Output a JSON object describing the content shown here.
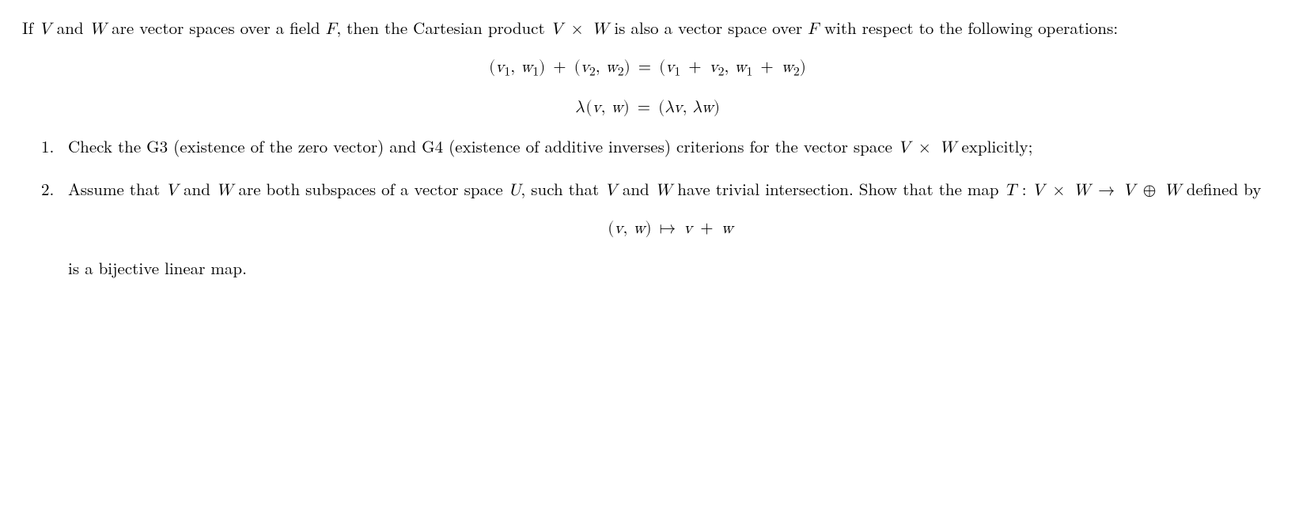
{
  "intro": {
    "part1": "If ",
    "V": "V",
    "and1": " and ",
    "W": "W",
    "part2": " are vector spaces over a field ",
    "F": "F",
    "part3": ", then the Cartesian product ",
    "VxW": "V × W",
    "part4": " is also a vector space over ",
    "F2": "F",
    "part5": " with respect to the following operations:"
  },
  "eq1": "(v₁, w₁) + (v₂, w₂) = (v₁ + v₂, w₁ + w₂)",
  "eq2": "λ (v, w) = (λv, λw)",
  "item1": {
    "part1": "Check the G3 (existence of the zero vector) and G4 (existence of additive inverses) criterions for the vector space ",
    "VxW": "V × W",
    "part2": " explicitly;"
  },
  "item2": {
    "part1": "Assume that ",
    "V": "V",
    "and1": " and ",
    "W": "W",
    "part2": " are both subspaces of a vector space ",
    "U": "U",
    "part3": ", such that ",
    "V2": "V",
    "and2": " and ",
    "W2": "W",
    "part4": " have trivial intersection. Show that the map ",
    "Tmap": "T : V × W → V ⊕ W",
    "part5": " defined by",
    "eq3": "(v, w) ↦ v + w",
    "part6": "is a bijective linear map."
  }
}
